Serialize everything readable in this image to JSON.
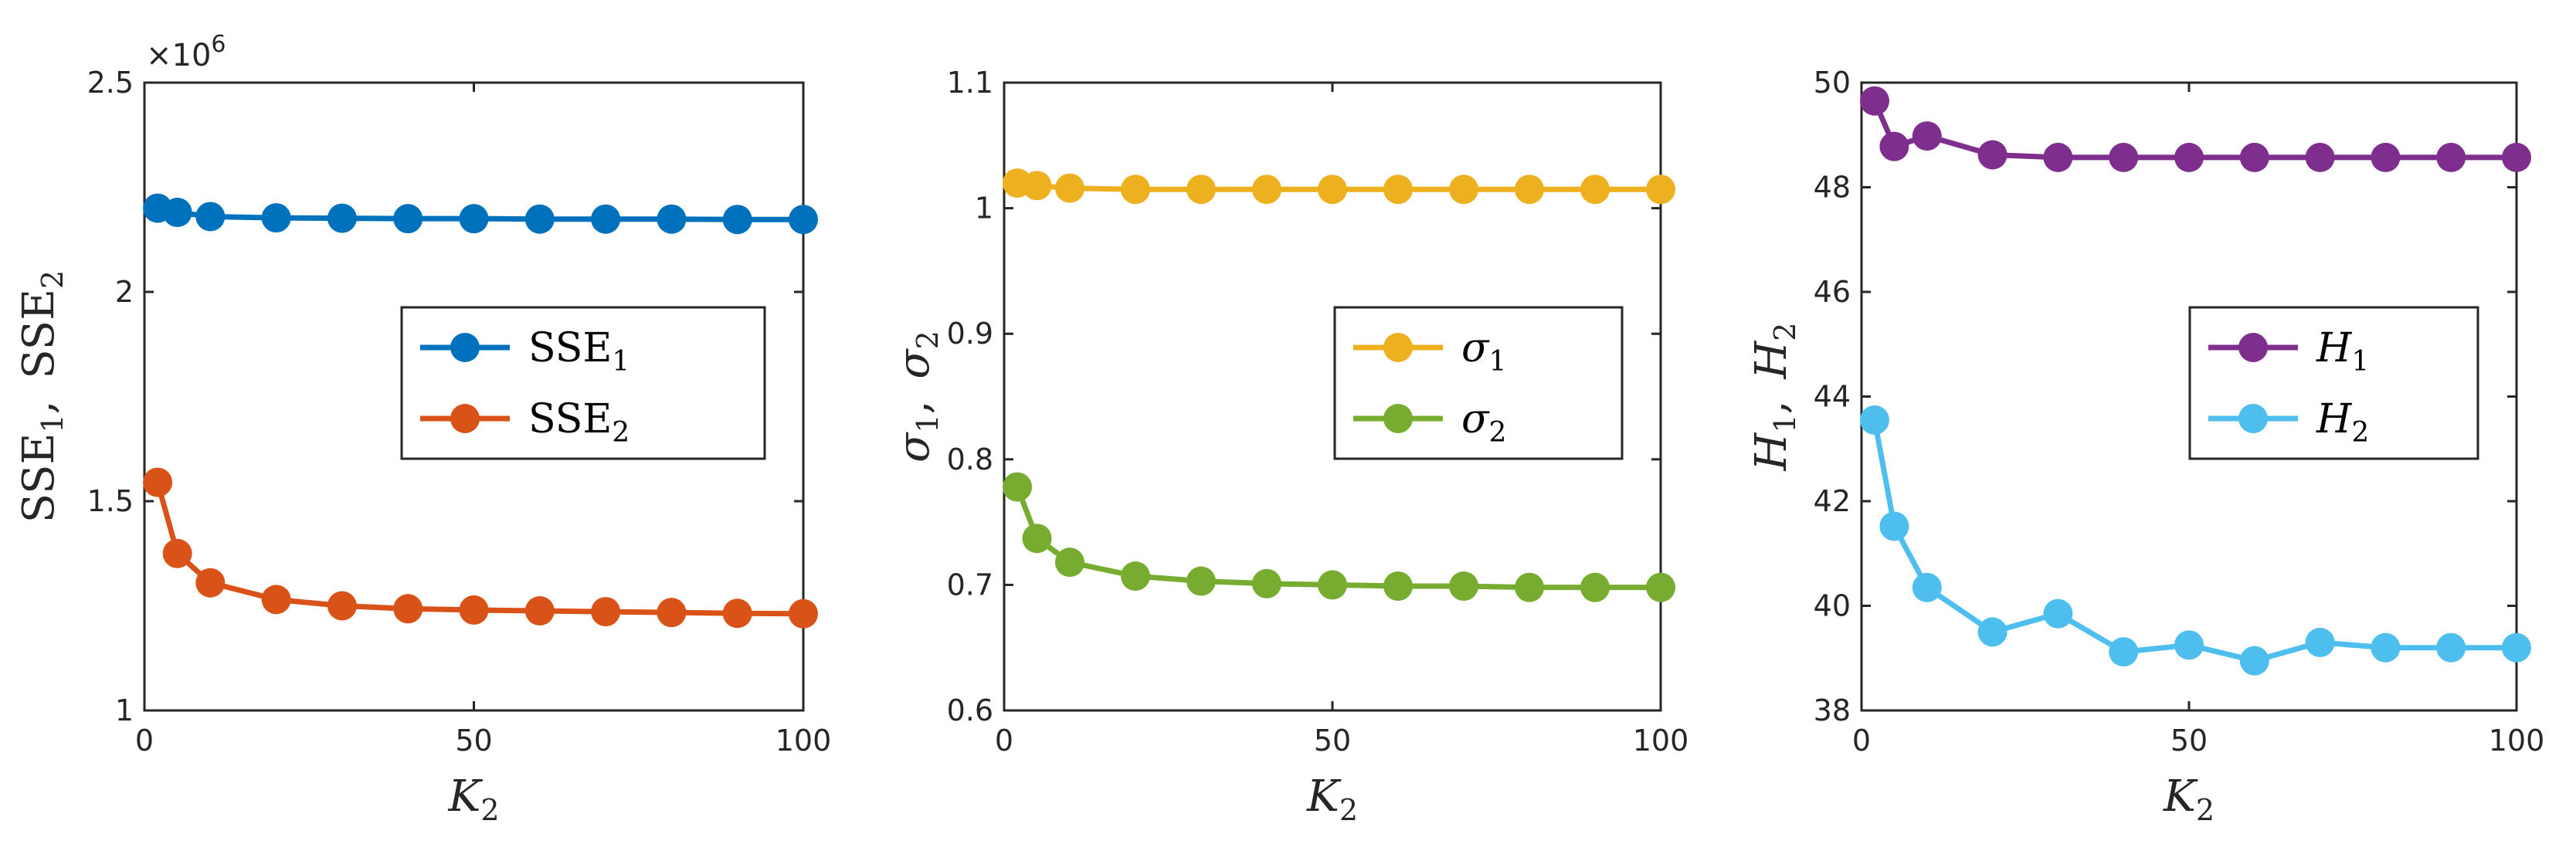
{
  "chart_data": [
    {
      "type": "line",
      "xlabel": "K",
      "xlabel_sub": "2",
      "ylabel": [
        {
          "base": "SSE",
          "sub": "1"
        },
        {
          "base": "SSE",
          "sub": "2"
        }
      ],
      "y_multiplier": {
        "base": "×10",
        "exp": "6"
      },
      "xlim": [
        0,
        100
      ],
      "ylim": [
        1,
        2.5
      ],
      "xticks": [
        0,
        50,
        100
      ],
      "yticks": [
        1,
        1.5,
        2,
        2.5
      ],
      "ytick_labels": [
        "1",
        "1.5",
        "2",
        "2.5"
      ],
      "legend_position": "center-right",
      "series": [
        {
          "name": "SSE",
          "name_sub": "1",
          "italic": false,
          "color": "#0072BD",
          "x": [
            2,
            5,
            10,
            20,
            30,
            40,
            50,
            60,
            70,
            80,
            90,
            100
          ],
          "y": [
            2.2,
            2.19,
            2.18,
            2.177,
            2.176,
            2.175,
            2.175,
            2.174,
            2.174,
            2.174,
            2.173,
            2.173
          ]
        },
        {
          "name": "SSE",
          "name_sub": "2",
          "italic": false,
          "color": "#D95319",
          "x": [
            2,
            5,
            10,
            20,
            30,
            40,
            50,
            60,
            70,
            80,
            90,
            100
          ],
          "y": [
            1.545,
            1.375,
            1.305,
            1.265,
            1.25,
            1.243,
            1.24,
            1.238,
            1.236,
            1.234,
            1.232,
            1.231
          ]
        }
      ]
    },
    {
      "type": "line",
      "xlabel": "K",
      "xlabel_sub": "2",
      "ylabel": [
        {
          "base": "σ",
          "sub": "1"
        },
        {
          "base": "σ",
          "sub": "2"
        }
      ],
      "xlim": [
        0,
        100
      ],
      "ylim": [
        0.6,
        1.1
      ],
      "xticks": [
        0,
        50,
        100
      ],
      "yticks": [
        0.6,
        0.7,
        0.8,
        0.9,
        1.0,
        1.1
      ],
      "ytick_labels": [
        "0.6",
        "0.7",
        "0.8",
        "0.9",
        "1",
        "1.1"
      ],
      "legend_position": "center-right",
      "series": [
        {
          "name": "σ",
          "name_sub": "1",
          "italic": true,
          "color": "#EDB120",
          "x": [
            2,
            5,
            10,
            20,
            30,
            40,
            50,
            60,
            70,
            80,
            90,
            100
          ],
          "y": [
            1.02,
            1.018,
            1.016,
            1.015,
            1.015,
            1.015,
            1.015,
            1.015,
            1.015,
            1.015,
            1.015,
            1.015
          ]
        },
        {
          "name": "σ",
          "name_sub": "2",
          "italic": true,
          "color": "#77AC30",
          "x": [
            2,
            5,
            10,
            20,
            30,
            40,
            50,
            60,
            70,
            80,
            90,
            100
          ],
          "y": [
            0.778,
            0.737,
            0.718,
            0.707,
            0.703,
            0.701,
            0.7,
            0.699,
            0.699,
            0.698,
            0.698,
            0.698
          ]
        }
      ]
    },
    {
      "type": "line",
      "xlabel": "K",
      "xlabel_sub": "2",
      "ylabel": [
        {
          "base": "H",
          "sub": "1"
        },
        {
          "base": "H",
          "sub": "2"
        }
      ],
      "xlim": [
        0,
        100
      ],
      "ylim": [
        38,
        50
      ],
      "xticks": [
        0,
        50,
        100
      ],
      "yticks": [
        38,
        40,
        42,
        44,
        46,
        48,
        50
      ],
      "ytick_labels": [
        "38",
        "40",
        "42",
        "44",
        "46",
        "48",
        "50"
      ],
      "legend_position": "center-right",
      "series": [
        {
          "name": "H",
          "name_sub": "1",
          "italic": true,
          "color": "#7E2F8E",
          "x": [
            2,
            5,
            10,
            20,
            30,
            40,
            50,
            60,
            70,
            80,
            90,
            100
          ],
          "y": [
            49.65,
            48.78,
            48.98,
            48.62,
            48.57,
            48.57,
            48.57,
            48.57,
            48.57,
            48.57,
            48.57,
            48.57
          ]
        },
        {
          "name": "H",
          "name_sub": "2",
          "italic": true,
          "color": "#4DBEEE",
          "x": [
            2,
            5,
            10,
            20,
            30,
            40,
            50,
            60,
            70,
            80,
            90,
            100
          ],
          "y": [
            43.55,
            41.52,
            40.35,
            39.5,
            39.85,
            39.12,
            39.25,
            38.95,
            39.3,
            39.2,
            39.2,
            39.2
          ]
        }
      ]
    }
  ]
}
